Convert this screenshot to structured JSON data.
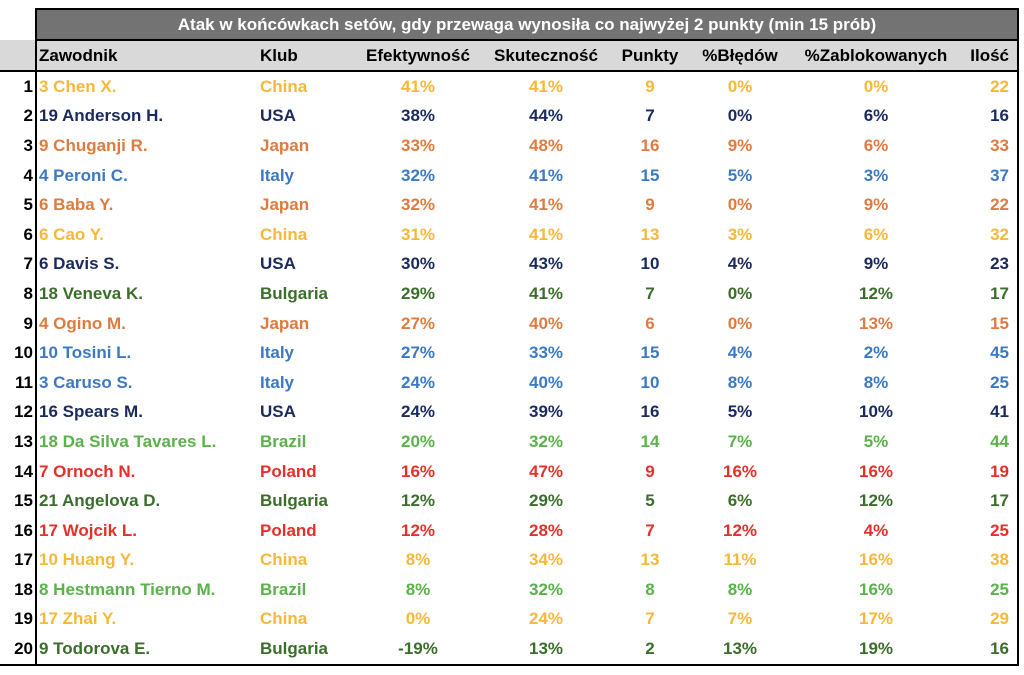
{
  "title": "Atak w końcówkach setów, gdy przewaga wynosiła co najwyżej 2 punkty (min 15 prób)",
  "headers": [
    "Zawodnik",
    "Klub",
    "Efektywność",
    "Skuteczność",
    "Punkty",
    "%Błędów",
    "%Zablokowanych",
    "Ilość"
  ],
  "club_colors": {
    "China": "#f6b83a",
    "USA": "#1a2a5c",
    "Japan": "#de7b40",
    "Italy": "#3c79c2",
    "Bulgaria": "#3b6e2c",
    "Brazil": "#5bb14b",
    "Poland": "#e5302a"
  },
  "rows": [
    {
      "rank": "1",
      "player": "3 Chen X.",
      "club": "China",
      "efektywnosc": "41%",
      "skutecznosc": "41%",
      "punkty": "9",
      "bledow": "0%",
      "zablokowanych": "0%",
      "ilosc": "22"
    },
    {
      "rank": "2",
      "player": "19 Anderson H.",
      "club": "USA",
      "efektywnosc": "38%",
      "skutecznosc": "44%",
      "punkty": "7",
      "bledow": "0%",
      "zablokowanych": "6%",
      "ilosc": "16"
    },
    {
      "rank": "3",
      "player": "9 Chuganji R.",
      "club": "Japan",
      "efektywnosc": "33%",
      "skutecznosc": "48%",
      "punkty": "16",
      "bledow": "9%",
      "zablokowanych": "6%",
      "ilosc": "33"
    },
    {
      "rank": "4",
      "player": "4 Peroni C.",
      "club": "Italy",
      "efektywnosc": "32%",
      "skutecznosc": "41%",
      "punkty": "15",
      "bledow": "5%",
      "zablokowanych": "3%",
      "ilosc": "37"
    },
    {
      "rank": "5",
      "player": "6 Baba Y.",
      "club": "Japan",
      "efektywnosc": "32%",
      "skutecznosc": "41%",
      "punkty": "9",
      "bledow": "0%",
      "zablokowanych": "9%",
      "ilosc": "22"
    },
    {
      "rank": "6",
      "player": "6 Cao Y.",
      "club": "China",
      "efektywnosc": "31%",
      "skutecznosc": "41%",
      "punkty": "13",
      "bledow": "3%",
      "zablokowanych": "6%",
      "ilosc": "32"
    },
    {
      "rank": "7",
      "player": "6 Davis S.",
      "club": "USA",
      "efektywnosc": "30%",
      "skutecznosc": "43%",
      "punkty": "10",
      "bledow": "4%",
      "zablokowanych": "9%",
      "ilosc": "23"
    },
    {
      "rank": "8",
      "player": "18 Veneva K.",
      "club": "Bulgaria",
      "efektywnosc": "29%",
      "skutecznosc": "41%",
      "punkty": "7",
      "bledow": "0%",
      "zablokowanych": "12%",
      "ilosc": "17"
    },
    {
      "rank": "9",
      "player": "4 Ogino M.",
      "club": "Japan",
      "efektywnosc": "27%",
      "skutecznosc": "40%",
      "punkty": "6",
      "bledow": "0%",
      "zablokowanych": "13%",
      "ilosc": "15"
    },
    {
      "rank": "10",
      "player": "10 Tosini L.",
      "club": "Italy",
      "efektywnosc": "27%",
      "skutecznosc": "33%",
      "punkty": "15",
      "bledow": "4%",
      "zablokowanych": "2%",
      "ilosc": "45"
    },
    {
      "rank": "11",
      "player": "3 Caruso S.",
      "club": "Italy",
      "efektywnosc": "24%",
      "skutecznosc": "40%",
      "punkty": "10",
      "bledow": "8%",
      "zablokowanych": "8%",
      "ilosc": "25"
    },
    {
      "rank": "12",
      "player": "16 Spears M.",
      "club": "USA",
      "efektywnosc": "24%",
      "skutecznosc": "39%",
      "punkty": "16",
      "bledow": "5%",
      "zablokowanych": "10%",
      "ilosc": "41"
    },
    {
      "rank": "13",
      "player": "18 Da Silva Tavares L.",
      "club": "Brazil",
      "efektywnosc": "20%",
      "skutecznosc": "32%",
      "punkty": "14",
      "bledow": "7%",
      "zablokowanych": "5%",
      "ilosc": "44"
    },
    {
      "rank": "14",
      "player": "7 Ornoch N.",
      "club": "Poland",
      "efektywnosc": "16%",
      "skutecznosc": "47%",
      "punkty": "9",
      "bledow": "16%",
      "zablokowanych": "16%",
      "ilosc": "19"
    },
    {
      "rank": "15",
      "player": "21 Angelova D.",
      "club": "Bulgaria",
      "efektywnosc": "12%",
      "skutecznosc": "29%",
      "punkty": "5",
      "bledow": "6%",
      "zablokowanych": "12%",
      "ilosc": "17"
    },
    {
      "rank": "16",
      "player": "17 Wojcik L.",
      "club": "Poland",
      "efektywnosc": "12%",
      "skutecznosc": "28%",
      "punkty": "7",
      "bledow": "12%",
      "zablokowanych": "4%",
      "ilosc": "25"
    },
    {
      "rank": "17",
      "player": "10 Huang Y.",
      "club": "China",
      "efektywnosc": "8%",
      "skutecznosc": "34%",
      "punkty": "13",
      "bledow": "11%",
      "zablokowanych": "16%",
      "ilosc": "38"
    },
    {
      "rank": "18",
      "player": "8 Hestmann Tierno M.",
      "club": "Brazil",
      "efektywnosc": "8%",
      "skutecznosc": "32%",
      "punkty": "8",
      "bledow": "8%",
      "zablokowanych": "16%",
      "ilosc": "25"
    },
    {
      "rank": "19",
      "player": "17 Zhai Y.",
      "club": "China",
      "efektywnosc": "0%",
      "skutecznosc": "24%",
      "punkty": "7",
      "bledow": "7%",
      "zablokowanych": "17%",
      "ilosc": "29"
    },
    {
      "rank": "20",
      "player": "9 Todorova E.",
      "club": "Bulgaria",
      "efektywnosc": "-19%",
      "skutecznosc": "13%",
      "punkty": "2",
      "bledow": "13%",
      "zablokowanych": "19%",
      "ilosc": "16"
    }
  ]
}
